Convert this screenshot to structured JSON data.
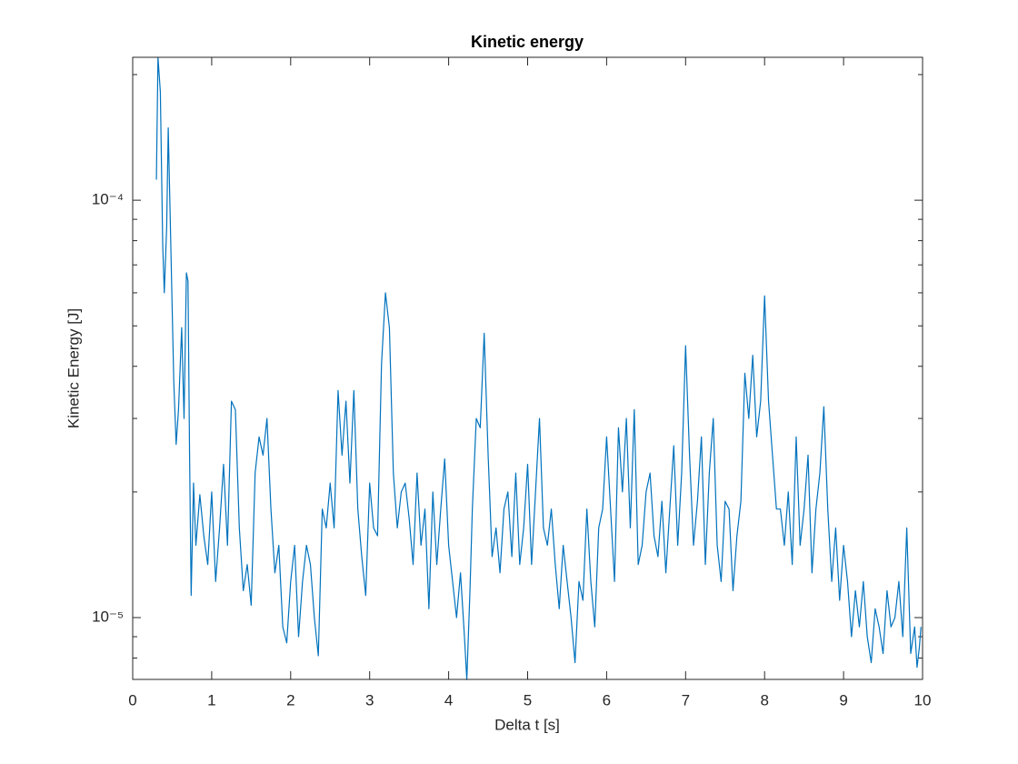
{
  "chart_data": {
    "type": "line",
    "title": "Kinetic energy",
    "x_label": "Delta t [s]",
    "y_label": "Kinetic Energy [J]",
    "color": "#0072bd",
    "y_scale": "log",
    "xlim": [
      0,
      10
    ],
    "xticks": [
      0,
      1,
      2,
      3,
      4,
      5,
      6,
      7,
      8,
      9,
      10
    ],
    "ylim": [
      7.11e-06,
      0.00022
    ],
    "yticks": [
      {
        "value": 1e-05,
        "label": "10⁻⁵"
      },
      {
        "value": 0.0001,
        "label": "10⁻⁴"
      }
    ],
    "yminorticks": [
      8e-06,
      9e-06,
      2e-05,
      3e-05,
      4e-05,
      5e-05,
      6e-05,
      7e-05,
      8e-05,
      9e-05,
      0.0002
    ],
    "x": [
      0.3,
      0.32,
      0.35,
      0.38,
      0.4,
      0.43,
      0.45,
      0.48,
      0.52,
      0.55,
      0.58,
      0.62,
      0.65,
      0.68,
      0.7,
      0.72,
      0.74,
      0.77,
      0.8,
      0.85,
      0.9,
      0.95,
      1.0,
      1.05,
      1.1,
      1.15,
      1.2,
      1.25,
      1.3,
      1.35,
      1.4,
      1.45,
      1.5,
      1.55,
      1.6,
      1.65,
      1.7,
      1.75,
      1.8,
      1.85,
      1.9,
      1.95,
      2.0,
      2.05,
      2.1,
      2.15,
      2.2,
      2.25,
      2.3,
      2.35,
      2.4,
      2.45,
      2.5,
      2.55,
      2.6,
      2.65,
      2.7,
      2.75,
      2.8,
      2.85,
      2.9,
      2.95,
      3.0,
      3.05,
      3.1,
      3.15,
      3.2,
      3.25,
      3.3,
      3.35,
      3.4,
      3.45,
      3.5,
      3.55,
      3.6,
      3.65,
      3.7,
      3.75,
      3.8,
      3.85,
      3.9,
      3.95,
      4.0,
      4.05,
      4.1,
      4.15,
      4.2,
      4.23,
      4.27,
      4.3,
      4.35,
      4.4,
      4.45,
      4.5,
      4.55,
      4.6,
      4.65,
      4.7,
      4.75,
      4.8,
      4.85,
      4.9,
      4.95,
      5.0,
      5.05,
      5.1,
      5.15,
      5.2,
      5.25,
      5.3,
      5.35,
      5.4,
      5.45,
      5.5,
      5.55,
      5.6,
      5.65,
      5.7,
      5.75,
      5.8,
      5.85,
      5.9,
      5.95,
      6.0,
      6.05,
      6.1,
      6.15,
      6.2,
      6.25,
      6.3,
      6.35,
      6.4,
      6.45,
      6.5,
      6.55,
      6.6,
      6.65,
      6.7,
      6.75,
      6.8,
      6.85,
      6.9,
      6.95,
      7.0,
      7.05,
      7.1,
      7.15,
      7.2,
      7.25,
      7.3,
      7.35,
      7.4,
      7.45,
      7.5,
      7.55,
      7.6,
      7.65,
      7.7,
      7.75,
      7.8,
      7.85,
      7.9,
      7.95,
      8.0,
      8.05,
      8.1,
      8.15,
      8.2,
      8.25,
      8.3,
      8.35,
      8.4,
      8.45,
      8.5,
      8.55,
      8.6,
      8.65,
      8.7,
      8.75,
      8.8,
      8.85,
      8.9,
      8.95,
      9.0,
      9.05,
      9.1,
      9.15,
      9.2,
      9.25,
      9.3,
      9.35,
      9.4,
      9.45,
      9.5,
      9.55,
      9.6,
      9.65,
      9.7,
      9.75,
      9.8,
      9.85,
      9.9,
      9.93,
      9.96,
      9.98
    ],
    "values": [
      0.000112,
      0.00022,
      0.000182,
      7.8e-05,
      6e-05,
      8.6e-05,
      0.000149,
      8.2e-05,
      3.67e-05,
      2.6e-05,
      3.15e-05,
      4.95e-05,
      3e-05,
      6.7e-05,
      6.4e-05,
      2.45e-05,
      1.13e-05,
      2.1e-05,
      1.49e-05,
      1.97e-05,
      1.57e-05,
      1.34e-05,
      2e-05,
      1.22e-05,
      1.64e-05,
      2.33e-05,
      1.49e-05,
      3.3e-05,
      3.15e-05,
      1.64e-05,
      1.16e-05,
      1.34e-05,
      1.07e-05,
      2.22e-05,
      2.71e-05,
      2.45e-05,
      3e-05,
      1.82e-05,
      1.28e-05,
      1.49e-05,
      9.5e-06,
      8.7e-06,
      1.22e-05,
      1.49e-05,
      9e-06,
      1.22e-05,
      1.49e-05,
      1.34e-05,
      1e-05,
      8.1e-06,
      1.82e-05,
      1.64e-05,
      2.1e-05,
      1.64e-05,
      3.5e-05,
      2.45e-05,
      3.3e-05,
      2.1e-05,
      3.5e-05,
      1.82e-05,
      1.4e-05,
      1.13e-05,
      2.1e-05,
      1.64e-05,
      1.57e-05,
      4.05e-05,
      6e-05,
      4.95e-05,
      2.22e-05,
      1.64e-05,
      2e-05,
      2.1e-05,
      1.73e-05,
      1.34e-05,
      2.22e-05,
      1.49e-05,
      1.82e-05,
      1.05e-05,
      2e-05,
      1.34e-05,
      1.82e-05,
      2.4e-05,
      1.49e-05,
      1.22e-05,
      1e-05,
      1.28e-05,
      9e-06,
      7.1e-06,
      1.16e-05,
      1.82e-05,
      3e-05,
      2.85e-05,
      4.8e-05,
      2.45e-05,
      1.4e-05,
      1.64e-05,
      1.28e-05,
      1.82e-05,
      2e-05,
      1.4e-05,
      2.22e-05,
      1.34e-05,
      1.64e-05,
      2.33e-05,
      1.34e-05,
      2e-05,
      3e-05,
      1.64e-05,
      1.49e-05,
      1.82e-05,
      1.34e-05,
      1.05e-05,
      1.49e-05,
      1.22e-05,
      1e-05,
      7.8e-06,
      1.22e-05,
      1.1e-05,
      1.82e-05,
      1.22e-05,
      9.5e-06,
      1.64e-05,
      1.82e-05,
      2.71e-05,
      1.82e-05,
      1.22e-05,
      2.85e-05,
      2e-05,
      3e-05,
      1.64e-05,
      3.15e-05,
      1.34e-05,
      1.49e-05,
      2e-05,
      2.22e-05,
      1.57e-05,
      1.4e-05,
      1.9e-05,
      1.28e-05,
      1.82e-05,
      2.58e-05,
      1.49e-05,
      2.22e-05,
      4.48e-05,
      2.45e-05,
      1.49e-05,
      1.9e-05,
      2.71e-05,
      1.34e-05,
      2.22e-05,
      3e-05,
      1.49e-05,
      1.22e-05,
      1.9e-05,
      1.82e-05,
      1.16e-05,
      1.57e-05,
      1.9e-05,
      3.85e-05,
      3e-05,
      4.25e-05,
      2.71e-05,
      3.3e-05,
      5.9e-05,
      3.3e-05,
      2.45e-05,
      1.82e-05,
      1.82e-05,
      1.49e-05,
      2e-05,
      1.34e-05,
      2.71e-05,
      1.49e-05,
      1.82e-05,
      2.45e-05,
      1.28e-05,
      1.82e-05,
      2.22e-05,
      3.2e-05,
      1.82e-05,
      1.22e-05,
      1.64e-05,
      1.1e-05,
      1.49e-05,
      1.22e-05,
      9e-06,
      1.16e-05,
      9.5e-06,
      1.22e-05,
      9e-06,
      7.8e-06,
      1.05e-05,
      9.5e-06,
      8.2e-06,
      1.16e-05,
      9.5e-06,
      1e-05,
      1.22e-05,
      9e-06,
      1.64e-05,
      8.2e-06,
      9.5e-06,
      7.6e-06,
      8.5e-06,
      9.5e-06
    ]
  }
}
